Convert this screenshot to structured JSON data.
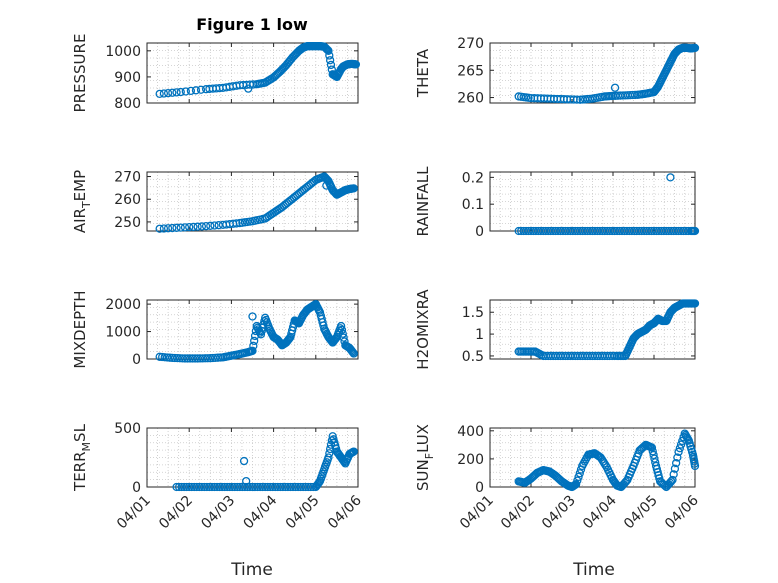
{
  "chart_data": {
    "type": "scatter",
    "title": "Figure 1 low",
    "marker_color": "#0072BD",
    "grid": true,
    "x_tick_labels": [
      "04/01",
      "04/02",
      "04/03",
      "04/04",
      "04/05",
      "04/06"
    ],
    "x_range": [
      0,
      5
    ],
    "subplots": [
      {
        "id": "pressure",
        "ylabel": "PRESSURE",
        "ylim": [
          800,
          1030
        ],
        "yticks": [
          800,
          900,
          1000
        ],
        "show_xticks": false,
        "series": [
          {
            "x": [
              0.3,
              0.8,
              1.4,
              1.8,
              2.2,
              2.6,
              2.8,
              3.0,
              3.15,
              3.3,
              3.45,
              3.6,
              3.7,
              3.8,
              3.9,
              4.0,
              4.1,
              4.2,
              4.3,
              4.4,
              4.5,
              4.6,
              4.65,
              4.75,
              4.85,
              4.95
            ],
            "y": [
              835,
              842,
              853,
              858,
              868,
              872,
              878,
              898,
              920,
              945,
              975,
              1000,
              1012,
              1018,
              1018,
              1018,
              1018,
              1016,
              1000,
              910,
              900,
              930,
              940,
              948,
              950,
              948
            ]
          }
        ],
        "outliers": [
          {
            "x": 2.4,
            "y": 855
          }
        ]
      },
      {
        "id": "theta",
        "ylabel": "THETA",
        "ylim": [
          259,
          270
        ],
        "yticks": [
          260,
          265,
          270
        ],
        "show_xticks": false,
        "series": [
          {
            "x": [
              0.7,
              1.0,
              1.4,
              1.8,
              2.2,
              2.5,
              2.8,
              3.0,
              3.3,
              3.6,
              3.8,
              4.0,
              4.1,
              4.2,
              4.3,
              4.4,
              4.5,
              4.6,
              4.7,
              4.8,
              4.9,
              5.0
            ],
            "y": [
              260.2,
              259.9,
              259.8,
              259.7,
              259.6,
              259.8,
              260.2,
              260.3,
              260.4,
              260.5,
              260.7,
              261,
              262,
              263.5,
              265,
              266.5,
              268,
              268.8,
              269.1,
              269.1,
              269,
              269.1
            ]
          }
        ],
        "outliers": [
          {
            "x": 3.05,
            "y": 261.8
          }
        ]
      },
      {
        "id": "air-temp",
        "ylabel_main": "AIR",
        "ylabel_sub": "T",
        "ylabel_rest": "EMP",
        "ylim": [
          246,
          272
        ],
        "yticks": [
          250,
          260,
          270
        ],
        "show_xticks": false,
        "series": [
          {
            "x": [
              0.3,
              0.8,
              1.3,
              1.8,
              2.2,
              2.5,
              2.8,
              3.0,
              3.2,
              3.4,
              3.6,
              3.8,
              4.0,
              4.2,
              4.3,
              4.4,
              4.5,
              4.6,
              4.7,
              4.8,
              4.9
            ],
            "y": [
              247,
              247.5,
              248,
              248.7,
              249.5,
              250.3,
              251.5,
              254,
              256.5,
              259.5,
              262.5,
              265.5,
              268.5,
              270,
              268,
              264,
              262,
              263,
              264,
              264.5,
              264.8
            ]
          }
        ],
        "outliers": [
          {
            "x": 4.25,
            "y": 266
          }
        ]
      },
      {
        "id": "rainfall",
        "ylabel": "RAINFALL",
        "ylim": [
          0,
          0.22
        ],
        "yticks": [
          0,
          0.1,
          0.2
        ],
        "show_xticks": false,
        "series": [
          {
            "x": [
              0.7,
              1.0,
              1.3,
              1.6,
              1.9,
              2.2,
              2.5,
              2.8,
              3.1,
              3.4,
              3.7,
              4.0,
              4.3,
              4.6,
              4.9,
              5.0
            ],
            "y": [
              0,
              0,
              0,
              0,
              0,
              0,
              0,
              0,
              0,
              0,
              0,
              0,
              0,
              0,
              0,
              0
            ]
          }
        ],
        "outliers": [
          {
            "x": 4.4,
            "y": 0.2
          }
        ]
      },
      {
        "id": "mixdepth",
        "ylabel": "MIXDEPTH",
        "ylim": [
          0,
          2150
        ],
        "yticks": [
          0,
          1000,
          2000
        ],
        "show_xticks": false,
        "series": [
          {
            "x": [
              0.3,
              0.6,
              0.9,
              1.2,
              1.5,
              1.8,
              2.0,
              2.2,
              2.4,
              2.5,
              2.6,
              2.7,
              2.8,
              2.9,
              3.0,
              3.1,
              3.2,
              3.3,
              3.4,
              3.5,
              3.6,
              3.7,
              3.8,
              3.9,
              4.0,
              4.1,
              4.2,
              4.3,
              4.4,
              4.5,
              4.6,
              4.7,
              4.8,
              4.9
            ],
            "y": [
              80,
              40,
              20,
              20,
              30,
              60,
              120,
              180,
              250,
              300,
              1200,
              900,
              1500,
              1100,
              800,
              700,
              500,
              600,
              800,
              1400,
              1300,
              1600,
              1800,
              1900,
              2000,
              1700,
              1100,
              800,
              600,
              800,
              1200,
              500,
              400,
              200
            ]
          }
        ],
        "outliers": [
          {
            "x": 2.5,
            "y": 1550
          }
        ]
      },
      {
        "id": "h2omixra",
        "ylabel": "H2OMIXRA",
        "ylim": [
          0.43,
          1.78
        ],
        "yticks": [
          0.5,
          1,
          1.5
        ],
        "show_xticks": false,
        "series": [
          {
            "x": [
              0.7,
              0.9,
              1.1,
              1.3,
              1.6,
              1.9,
              2.2,
              2.5,
              2.8,
              3.1,
              3.3,
              3.4,
              3.5,
              3.6,
              3.7,
              3.8,
              3.9,
              4.0,
              4.1,
              4.2,
              4.3,
              4.4,
              4.5,
              4.6,
              4.7,
              4.8,
              4.9,
              5.0
            ],
            "y": [
              0.6,
              0.6,
              0.6,
              0.5,
              0.5,
              0.5,
              0.5,
              0.5,
              0.5,
              0.5,
              0.5,
              0.7,
              0.9,
              1.0,
              1.05,
              1.1,
              1.2,
              1.25,
              1.35,
              1.3,
              1.3,
              1.5,
              1.6,
              1.65,
              1.7,
              1.7,
              1.7,
              1.7
            ]
          }
        ],
        "outliers": []
      },
      {
        "id": "terr-msl",
        "ylabel_main": "TERR",
        "ylabel_sub": "M",
        "ylabel_rest": "SL",
        "ylim": [
          0,
          500
        ],
        "yticks": [
          0,
          500
        ],
        "show_xticks": true,
        "series": [
          {
            "x": [
              0.7,
              1.0,
              1.3,
              1.6,
              1.9,
              2.2,
              2.5,
              2.8,
              3.1,
              3.4,
              3.7,
              4.0,
              4.1,
              4.2,
              4.3,
              4.4,
              4.5,
              4.6,
              4.7,
              4.8,
              4.9
            ],
            "y": [
              0,
              0,
              0,
              0,
              0,
              0,
              0,
              0,
              0,
              0,
              0,
              0,
              50,
              150,
              250,
              430,
              300,
              250,
              200,
              280,
              300
            ]
          }
        ],
        "outliers": [
          {
            "x": 2.3,
            "y": 220
          },
          {
            "x": 2.35,
            "y": 50
          }
        ]
      },
      {
        "id": "sun-flux",
        "ylabel_main": "SUN",
        "ylabel_sub": "F",
        "ylabel_rest": "LUX",
        "ylim": [
          0,
          420
        ],
        "yticks": [
          0,
          200,
          400
        ],
        "show_xticks": true,
        "series": [
          {
            "x": [
              0.7,
              0.85,
              1.0,
              1.15,
              1.3,
              1.45,
              1.6,
              1.75,
              1.9,
              2.0,
              2.1,
              2.25,
              2.4,
              2.55,
              2.7,
              2.85,
              3.0,
              3.1,
              3.2,
              3.35,
              3.5,
              3.65,
              3.8,
              3.95,
              4.05,
              4.15,
              4.3,
              4.45,
              4.6,
              4.75,
              4.85,
              4.95,
              5.0
            ],
            "y": [
              40,
              30,
              60,
              100,
              120,
              110,
              80,
              40,
              10,
              0,
              20,
              150,
              230,
              240,
              210,
              140,
              50,
              10,
              0,
              50,
              150,
              260,
              300,
              280,
              150,
              40,
              0,
              50,
              250,
              380,
              330,
              230,
              150
            ]
          }
        ],
        "outliers": []
      }
    ],
    "xlabel_left": "Time",
    "xlabel_right": "Time"
  }
}
